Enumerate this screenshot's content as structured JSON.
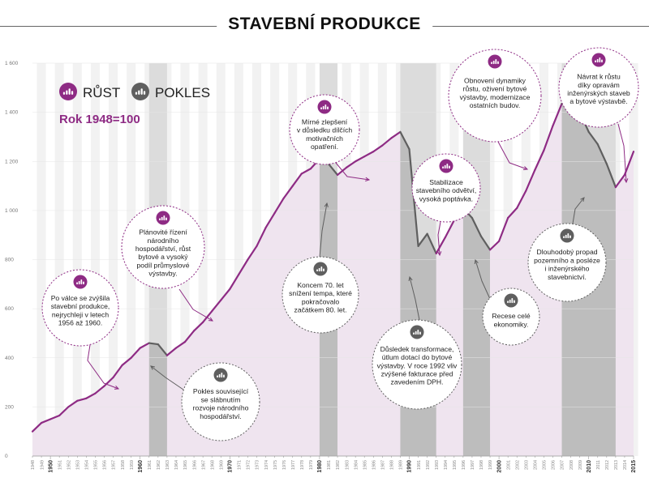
{
  "title": "STAVEBNÍ PRODUKCE",
  "colors": {
    "growth": "#8e2b84",
    "growth_fill": "#efe4ef",
    "decline": "#5f5f5f",
    "decline_band": "#dcdcdc",
    "gray_band": "#f2f2f2",
    "axis": "#bbbbbb"
  },
  "legend": {
    "growth_label": "RŮST",
    "decline_label": "POKLES",
    "growth_icon": "bar-chart-icon",
    "decline_icon": "bar-chart-icon"
  },
  "base_note": "Rok 1948=100",
  "chart_data": {
    "type": "area",
    "title": "STAVEBNÍ PRODUKCE",
    "xlim": [
      1948,
      2015
    ],
    "ylim": [
      0,
      1600
    ],
    "y_ticks": [
      0,
      200,
      400,
      600,
      800,
      1000,
      1200,
      1400,
      1600
    ],
    "y_tick_labels": [
      "0",
      "200",
      "400",
      "600",
      "800",
      "1 000",
      "1 200",
      "1 400",
      "1 600"
    ],
    "x_bold_years": [
      1950,
      1960,
      1970,
      1980,
      1990,
      2000,
      2010,
      2015
    ],
    "x": [
      1948,
      1949,
      1950,
      1951,
      1952,
      1953,
      1954,
      1955,
      1956,
      1957,
      1958,
      1959,
      1960,
      1961,
      1962,
      1963,
      1964,
      1965,
      1966,
      1967,
      1968,
      1969,
      1970,
      1971,
      1972,
      1973,
      1974,
      1975,
      1976,
      1977,
      1978,
      1979,
      1980,
      1981,
      1982,
      1983,
      1984,
      1985,
      1986,
      1987,
      1988,
      1989,
      1990,
      1991,
      1992,
      1993,
      1994,
      1995,
      1996,
      1997,
      1998,
      1999,
      2000,
      2001,
      2002,
      2003,
      2004,
      2005,
      2006,
      2007,
      2008,
      2009,
      2010,
      2011,
      2012,
      2013,
      2014,
      2015
    ],
    "y": [
      100,
      135,
      150,
      165,
      200,
      225,
      235,
      255,
      285,
      320,
      370,
      400,
      440,
      460,
      455,
      410,
      440,
      465,
      510,
      545,
      590,
      635,
      680,
      740,
      800,
      855,
      930,
      990,
      1050,
      1100,
      1150,
      1170,
      1210,
      1190,
      1145,
      1175,
      1200,
      1220,
      1240,
      1265,
      1295,
      1320,
      1250,
      855,
      905,
      825,
      890,
      960,
      1010,
      970,
      895,
      840,
      875,
      970,
      1010,
      1080,
      1165,
      1245,
      1345,
      1435,
      1435,
      1400,
      1320,
      1270,
      1190,
      1095,
      1145,
      1240
    ],
    "decline_periods": [
      [
        1961,
        1963
      ],
      [
        1980,
        1982
      ],
      [
        1989,
        1993
      ],
      [
        1996,
        1999
      ],
      [
        2007,
        2013
      ]
    ],
    "callouts": [
      {
        "kind": "growth",
        "lines": [
          "Po válce se zvýšila",
          "stavební produkce,",
          "nejrychleji v letech",
          "1956 až 1960."
        ]
      },
      {
        "kind": "growth",
        "lines": [
          "Plánovité řízení",
          "národního",
          "hospodářství, růst",
          "bytové a vysoký",
          "podíl průmyslové",
          "výstavby."
        ]
      },
      {
        "kind": "decline",
        "lines": [
          "Pokles související",
          "se slábnutím",
          "rozvoje národního",
          "hospodářství."
        ]
      },
      {
        "kind": "growth",
        "lines": [
          "Mírné zlepšení",
          "v důsledku dílčích",
          "motivačních",
          "opatření."
        ]
      },
      {
        "kind": "decline",
        "lines": [
          "Koncem 70. let",
          "snížení tempa, které",
          "pokračovalo",
          "začátkem 80. let."
        ]
      },
      {
        "kind": "decline",
        "lines": [
          "Důsledek transformace,",
          "útlum dotací do bytové",
          "výstavby. V roce 1992 vliv",
          "zvýšené fakturace před",
          "zavedením DPH."
        ]
      },
      {
        "kind": "growth",
        "lines": [
          "Stabilizace",
          "stavebního odvětví,",
          "vysoká poptávka."
        ]
      },
      {
        "kind": "decline",
        "lines": [
          "Recese celé",
          "ekonomiky."
        ]
      },
      {
        "kind": "growth",
        "lines": [
          "Obnovení dynamiky",
          "růstu, oživení bytové",
          "výstavby, modernizace",
          "ostatních budov."
        ]
      },
      {
        "kind": "decline",
        "lines": [
          "Dlouhodobý propad",
          "pozemního a posléze",
          "i inženýrského",
          "stavebnictví."
        ]
      },
      {
        "kind": "growth",
        "lines": [
          "Návrat k růstu",
          "díky opravám",
          "inženýrských staveb",
          "a bytové výstavbě."
        ]
      }
    ]
  }
}
